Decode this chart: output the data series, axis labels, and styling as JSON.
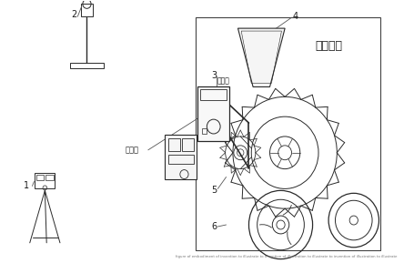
{
  "background_color": "#ffffff",
  "fig_width": 4.55,
  "fig_height": 2.89,
  "dpi": 100,
  "label_1": "1",
  "label_2": "2",
  "label_3": "3",
  "label_4": "4",
  "label_5": "5",
  "label_6": "6",
  "label_biansuhe": "变速盒",
  "label_kongzhiqi": "控制器",
  "label_bozhi": "播种单体",
  "line_color": "#2a2a2a",
  "dash_color": "#444444",
  "text_color": "#1a1a1a",
  "bottom_text": "figure of embodiment of invention to illustrate to invention of illustration to illustrate to invention of illustration to illustrate"
}
